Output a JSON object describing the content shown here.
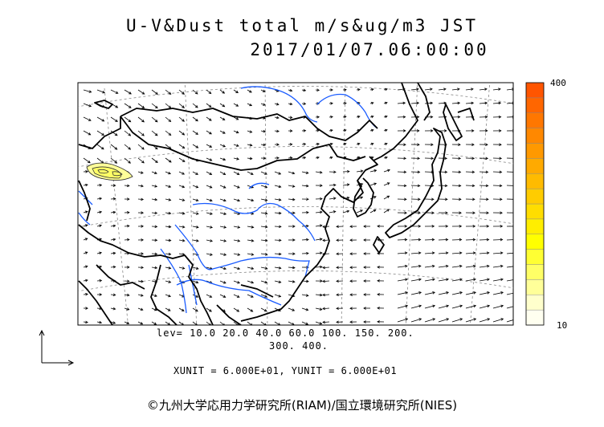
{
  "chart_data": {
    "type": "map",
    "title_line1": "U-V&Dust total m/s&ug/m3 JST",
    "title_line2": "2017/01/07.06:00:00",
    "legend": {
      "label_max": "400",
      "label_min": "10",
      "levels": [
        10,
        20,
        40,
        60,
        100,
        150,
        200,
        300,
        400
      ],
      "colors": [
        "#fffff0",
        "#ffffcc",
        "#ffff99",
        "#ffff66",
        "#ffff33",
        "#ffff00",
        "#ffee00",
        "#ffdd00",
        "#ffcc00",
        "#ffbb00",
        "#ffaa00",
        "#ff9900",
        "#ff8800",
        "#ff7700",
        "#ff6600",
        "#ff5500"
      ]
    },
    "lev_line1": "lev=  10.0  20.0  40.0  60.0 100. 150. 200.",
    "lev_line2": "300. 400.",
    "units_text": "XUNIT = 6.000E+01, YUNIT = 6.000E+01",
    "dust_region": "western Mongolia / Xinjiang",
    "vector_scale": {
      "xunit": 60.0,
      "yunit": 60.0
    }
  },
  "footer": {
    "copyright": "©九州大学応用力学研究所(RIAM)/国立環境研究所(NIES)"
  },
  "colors": {
    "coast": "#000000",
    "river": "#1a5cff",
    "grid": "#888888",
    "dust_contour": "#333333",
    "dust_fill": "#ffff99"
  }
}
